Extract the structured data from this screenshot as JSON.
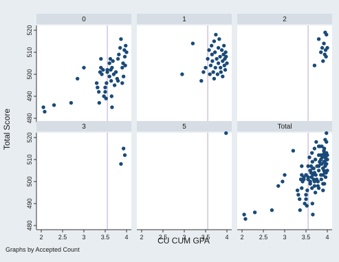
{
  "chart_data": {
    "type": "scatter",
    "by_label": "Graphs by Accepted Count",
    "xlabel": "CU CUM GPA",
    "ylabel": "Total Score",
    "xlim": [
      2,
      4
    ],
    "ylim": [
      480,
      520
    ],
    "xticks": [
      "2",
      "2.5",
      "3",
      "3.5",
      "4"
    ],
    "yticks": [
      "480",
      "490",
      "500",
      "510",
      "520"
    ],
    "reference_line_x": 3.55,
    "grid": false,
    "colors": {
      "outer_bg": "#e7edf1",
      "panel_bg": "#ffffff",
      "strip_bg": "#d6dde4",
      "marker": "#1a4a78",
      "refline": "#b8a5d6",
      "text": "#1a1a1a"
    },
    "panels": [
      {
        "title": "0",
        "points": [
          [
            2.05,
            485
          ],
          [
            2.08,
            483
          ],
          [
            2.3,
            486
          ],
          [
            2.7,
            487
          ],
          [
            2.85,
            498
          ],
          [
            3.0,
            503
          ],
          [
            3.3,
            496
          ],
          [
            3.32,
            494
          ],
          [
            3.35,
            492
          ],
          [
            3.36,
            487
          ],
          [
            3.38,
            501
          ],
          [
            3.4,
            503
          ],
          [
            3.4,
            507
          ],
          [
            3.42,
            500
          ],
          [
            3.45,
            502
          ],
          [
            3.47,
            490
          ],
          [
            3.5,
            492
          ],
          [
            3.5,
            494
          ],
          [
            3.52,
            489
          ],
          [
            3.53,
            496
          ],
          [
            3.55,
            502
          ],
          [
            3.55,
            501
          ],
          [
            3.6,
            499
          ],
          [
            3.6,
            505
          ],
          [
            3.62,
            507
          ],
          [
            3.63,
            502
          ],
          [
            3.64,
            497
          ],
          [
            3.65,
            490
          ],
          [
            3.66,
            485
          ],
          [
            3.66,
            503
          ],
          [
            3.68,
            506
          ],
          [
            3.7,
            500
          ],
          [
            3.72,
            495
          ],
          [
            3.75,
            501
          ],
          [
            3.78,
            498
          ],
          [
            3.8,
            507
          ],
          [
            3.8,
            497
          ],
          [
            3.82,
            509
          ],
          [
            3.85,
            512
          ],
          [
            3.87,
            516
          ],
          [
            3.9,
            503
          ],
          [
            3.9,
            496
          ],
          [
            3.92,
            505
          ],
          [
            3.93,
            499
          ],
          [
            3.95,
            511
          ],
          [
            3.96,
            508
          ],
          [
            3.97,
            504
          ],
          [
            3.98,
            513
          ],
          [
            4.0,
            510
          ]
        ]
      },
      {
        "title": "1",
        "points": [
          [
            2.95,
            500
          ],
          [
            3.2,
            514
          ],
          [
            3.4,
            497
          ],
          [
            3.45,
            501
          ],
          [
            3.5,
            503
          ],
          [
            3.55,
            507
          ],
          [
            3.58,
            511
          ],
          [
            3.6,
            500
          ],
          [
            3.62,
            504
          ],
          [
            3.64,
            513
          ],
          [
            3.65,
            509
          ],
          [
            3.66,
            506
          ],
          [
            3.68,
            501
          ],
          [
            3.7,
            515
          ],
          [
            3.7,
            498
          ],
          [
            3.72,
            510
          ],
          [
            3.73,
            503
          ],
          [
            3.74,
            518
          ],
          [
            3.76,
            507
          ],
          [
            3.78,
            500
          ],
          [
            3.8,
            512
          ],
          [
            3.8,
            505
          ],
          [
            3.82,
            516
          ],
          [
            3.84,
            508
          ],
          [
            3.85,
            503
          ],
          [
            3.86,
            501
          ],
          [
            3.88,
            511
          ],
          [
            3.9,
            506
          ],
          [
            3.9,
            499
          ],
          [
            3.92,
            509
          ],
          [
            3.93,
            513
          ],
          [
            3.94,
            504
          ],
          [
            3.95,
            507
          ],
          [
            3.96,
            502
          ],
          [
            3.97,
            510
          ],
          [
            3.98,
            508
          ],
          [
            4.0,
            505
          ]
        ]
      },
      {
        "title": "2",
        "points": [
          [
            3.7,
            504
          ],
          [
            3.8,
            516
          ],
          [
            3.85,
            510
          ],
          [
            3.88,
            512
          ],
          [
            3.9,
            506
          ],
          [
            3.92,
            514
          ],
          [
            3.94,
            509
          ],
          [
            3.95,
            519
          ],
          [
            3.96,
            511
          ],
          [
            3.97,
            508
          ],
          [
            3.98,
            518
          ],
          [
            4.0,
            512
          ]
        ]
      },
      {
        "title": "3",
        "points": [
          [
            3.87,
            508
          ],
          [
            3.93,
            515
          ],
          [
            3.96,
            512
          ]
        ]
      },
      {
        "title": "5",
        "points": [
          [
            3.98,
            522
          ]
        ]
      },
      {
        "title": "Total",
        "points": [
          [
            2.05,
            485
          ],
          [
            2.08,
            483
          ],
          [
            2.3,
            486
          ],
          [
            2.7,
            487
          ],
          [
            2.85,
            498
          ],
          [
            3.0,
            503
          ],
          [
            3.3,
            496
          ],
          [
            3.32,
            494
          ],
          [
            3.35,
            492
          ],
          [
            3.36,
            487
          ],
          [
            3.38,
            501
          ],
          [
            3.4,
            503
          ],
          [
            3.4,
            507
          ],
          [
            3.42,
            500
          ],
          [
            3.45,
            502
          ],
          [
            3.47,
            490
          ],
          [
            3.5,
            492
          ],
          [
            3.5,
            494
          ],
          [
            3.52,
            489
          ],
          [
            3.53,
            496
          ],
          [
            3.55,
            502
          ],
          [
            3.55,
            501
          ],
          [
            3.6,
            499
          ],
          [
            3.6,
            505
          ],
          [
            3.62,
            507
          ],
          [
            3.63,
            502
          ],
          [
            3.64,
            497
          ],
          [
            3.65,
            490
          ],
          [
            3.66,
            485
          ],
          [
            3.66,
            503
          ],
          [
            3.68,
            506
          ],
          [
            3.7,
            500
          ],
          [
            3.72,
            495
          ],
          [
            3.75,
            501
          ],
          [
            3.78,
            498
          ],
          [
            3.8,
            507
          ],
          [
            3.8,
            497
          ],
          [
            3.82,
            509
          ],
          [
            3.85,
            512
          ],
          [
            3.87,
            516
          ],
          [
            3.9,
            503
          ],
          [
            3.9,
            496
          ],
          [
            3.92,
            505
          ],
          [
            3.93,
            499
          ],
          [
            3.95,
            511
          ],
          [
            3.96,
            508
          ],
          [
            3.97,
            504
          ],
          [
            3.98,
            513
          ],
          [
            4.0,
            510
          ],
          [
            2.95,
            500
          ],
          [
            3.2,
            514
          ],
          [
            3.4,
            497
          ],
          [
            3.45,
            501
          ],
          [
            3.5,
            503
          ],
          [
            3.55,
            507
          ],
          [
            3.58,
            511
          ],
          [
            3.6,
            500
          ],
          [
            3.62,
            504
          ],
          [
            3.64,
            513
          ],
          [
            3.65,
            509
          ],
          [
            3.66,
            506
          ],
          [
            3.68,
            501
          ],
          [
            3.7,
            515
          ],
          [
            3.7,
            498
          ],
          [
            3.72,
            510
          ],
          [
            3.73,
            503
          ],
          [
            3.74,
            518
          ],
          [
            3.76,
            507
          ],
          [
            3.78,
            500
          ],
          [
            3.8,
            512
          ],
          [
            3.8,
            505
          ],
          [
            3.82,
            516
          ],
          [
            3.84,
            508
          ],
          [
            3.85,
            503
          ],
          [
            3.86,
            501
          ],
          [
            3.88,
            511
          ],
          [
            3.9,
            506
          ],
          [
            3.9,
            499
          ],
          [
            3.92,
            509
          ],
          [
            3.93,
            513
          ],
          [
            3.94,
            504
          ],
          [
            3.95,
            507
          ],
          [
            3.96,
            502
          ],
          [
            3.97,
            510
          ],
          [
            3.98,
            508
          ],
          [
            4.0,
            505
          ],
          [
            3.7,
            504
          ],
          [
            3.8,
            516
          ],
          [
            3.85,
            510
          ],
          [
            3.88,
            512
          ],
          [
            3.9,
            506
          ],
          [
            3.92,
            514
          ],
          [
            3.94,
            509
          ],
          [
            3.95,
            519
          ],
          [
            3.96,
            511
          ],
          [
            3.97,
            508
          ],
          [
            3.98,
            518
          ],
          [
            4.0,
            512
          ],
          [
            3.87,
            508
          ],
          [
            3.93,
            515
          ],
          [
            3.96,
            512
          ],
          [
            3.98,
            522
          ]
        ]
      }
    ]
  }
}
